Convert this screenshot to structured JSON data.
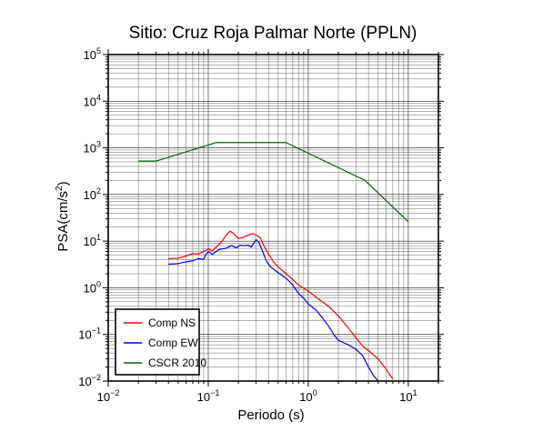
{
  "chart_data": {
    "type": "line",
    "title": "Sitio: Cruz Roja Palmar Norte (PPLN)",
    "xlabel": "Periodo (s)",
    "ylabel_base": "PSA(cm/s",
    "ylabel_sup": "2",
    "ylabel_end": ")",
    "xscale": "log",
    "yscale": "log",
    "xlim": [
      0.01,
      20
    ],
    "ylim": [
      0.01,
      100000
    ],
    "grid": true,
    "legend_position": "bottom-left",
    "x_tick_labels": [
      {
        "value": 0.01,
        "base": "10",
        "exp": "−2"
      },
      {
        "value": 0.1,
        "base": "10",
        "exp": "−1"
      },
      {
        "value": 1,
        "base": "10",
        "exp": "0"
      },
      {
        "value": 10,
        "base": "10",
        "exp": "1"
      }
    ],
    "y_tick_labels": [
      {
        "value": 0.01,
        "base": "10",
        "exp": "−2"
      },
      {
        "value": 0.1,
        "base": "10",
        "exp": "−1"
      },
      {
        "value": 1,
        "base": "10",
        "exp": "0"
      },
      {
        "value": 10,
        "base": "10",
        "exp": "1"
      },
      {
        "value": 100,
        "base": "10",
        "exp": "2"
      },
      {
        "value": 1000,
        "base": "10",
        "exp": "3"
      },
      {
        "value": 10000,
        "base": "10",
        "exp": "4"
      },
      {
        "value": 100000,
        "base": "10",
        "exp": "5"
      }
    ],
    "series": [
      {
        "name": "Comp NS",
        "color": "#ff0000",
        "points": [
          [
            0.04,
            4.2
          ],
          [
            0.05,
            4.3
          ],
          [
            0.06,
            4.8
          ],
          [
            0.07,
            5.4
          ],
          [
            0.08,
            5.3
          ],
          [
            0.09,
            6.0
          ],
          [
            0.1,
            6.8
          ],
          [
            0.11,
            6.2
          ],
          [
            0.12,
            7.4
          ],
          [
            0.13,
            8.7
          ],
          [
            0.14,
            10.5
          ],
          [
            0.15,
            13.0
          ],
          [
            0.165,
            16.5
          ],
          [
            0.18,
            14.5
          ],
          [
            0.2,
            11.5
          ],
          [
            0.22,
            11.8
          ],
          [
            0.25,
            13.5
          ],
          [
            0.28,
            14.5
          ],
          [
            0.3,
            13.5
          ],
          [
            0.33,
            12.0
          ],
          [
            0.36,
            8.0
          ],
          [
            0.4,
            5.3
          ],
          [
            0.45,
            3.6
          ],
          [
            0.5,
            2.8
          ],
          [
            0.6,
            2.0
          ],
          [
            0.7,
            1.5
          ],
          [
            0.8,
            1.15
          ],
          [
            1.0,
            0.85
          ],
          [
            1.3,
            0.55
          ],
          [
            1.6,
            0.4
          ],
          [
            2.0,
            0.25
          ],
          [
            2.5,
            0.14
          ],
          [
            3.0,
            0.085
          ],
          [
            3.5,
            0.056
          ],
          [
            4.0,
            0.045
          ],
          [
            5.0,
            0.03
          ],
          [
            6.0,
            0.018
          ],
          [
            7.0,
            0.011
          ]
        ]
      },
      {
        "name": "Comp EW",
        "color": "#0000ff",
        "points": [
          [
            0.04,
            3.2
          ],
          [
            0.05,
            3.3
          ],
          [
            0.06,
            3.6
          ],
          [
            0.07,
            3.8
          ],
          [
            0.08,
            4.2
          ],
          [
            0.09,
            4.1
          ],
          [
            0.095,
            5.2
          ],
          [
            0.1,
            6.0
          ],
          [
            0.11,
            5.2
          ],
          [
            0.12,
            6.0
          ],
          [
            0.13,
            6.7
          ],
          [
            0.15,
            7.0
          ],
          [
            0.17,
            8.0
          ],
          [
            0.19,
            7.2
          ],
          [
            0.21,
            8.2
          ],
          [
            0.23,
            8.0
          ],
          [
            0.25,
            8.2
          ],
          [
            0.27,
            7.5
          ],
          [
            0.3,
            10.8
          ],
          [
            0.32,
            9.5
          ],
          [
            0.35,
            6.0
          ],
          [
            0.38,
            3.8
          ],
          [
            0.42,
            2.8
          ],
          [
            0.5,
            2.1
          ],
          [
            0.6,
            1.6
          ],
          [
            0.7,
            1.15
          ],
          [
            0.8,
            0.75
          ],
          [
            0.9,
            0.6
          ],
          [
            1.0,
            0.45
          ],
          [
            1.2,
            0.33
          ],
          [
            1.4,
            0.22
          ],
          [
            1.6,
            0.15
          ],
          [
            1.8,
            0.1
          ],
          [
            2.0,
            0.075
          ],
          [
            2.5,
            0.06
          ],
          [
            3.0,
            0.048
          ],
          [
            3.5,
            0.035
          ],
          [
            4.0,
            0.02
          ],
          [
            4.5,
            0.013
          ],
          [
            5.0,
            0.01
          ]
        ]
      },
      {
        "name": "CSCR 2010",
        "color": "#006400",
        "points": [
          [
            0.02,
            520
          ],
          [
            0.03,
            520
          ],
          [
            0.12,
            1300
          ],
          [
            0.6,
            1300
          ],
          [
            3.7,
            200
          ],
          [
            10,
            26
          ]
        ]
      }
    ]
  }
}
